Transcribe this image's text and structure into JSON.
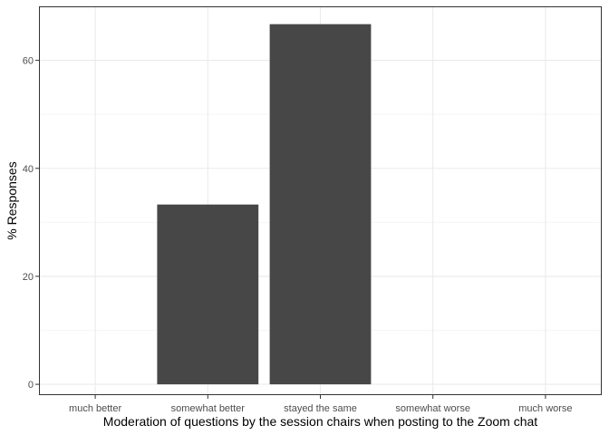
{
  "chart_data": {
    "type": "bar",
    "categories": [
      "much better",
      "somewhat better",
      "stayed the same",
      "somewhat worse",
      "much worse"
    ],
    "values": [
      0,
      33.3,
      66.7,
      0,
      0
    ],
    "title": "",
    "xlabel": "Moderation of questions by the session chairs when posting to the Zoom chat",
    "ylabel": "% Responses",
    "ylim": [
      -2,
      70
    ],
    "yticks": [
      0,
      20,
      40,
      60
    ],
    "ytick_labels": [
      "0",
      "20",
      "40",
      "60"
    ],
    "grid": true,
    "legend": "none",
    "colors": {
      "bar": "#474747",
      "panel_border": "#333333",
      "grid_major": "#ebebeb",
      "grid_minor": "#f5f5f5",
      "tick_text": "#4d4d4d"
    }
  }
}
